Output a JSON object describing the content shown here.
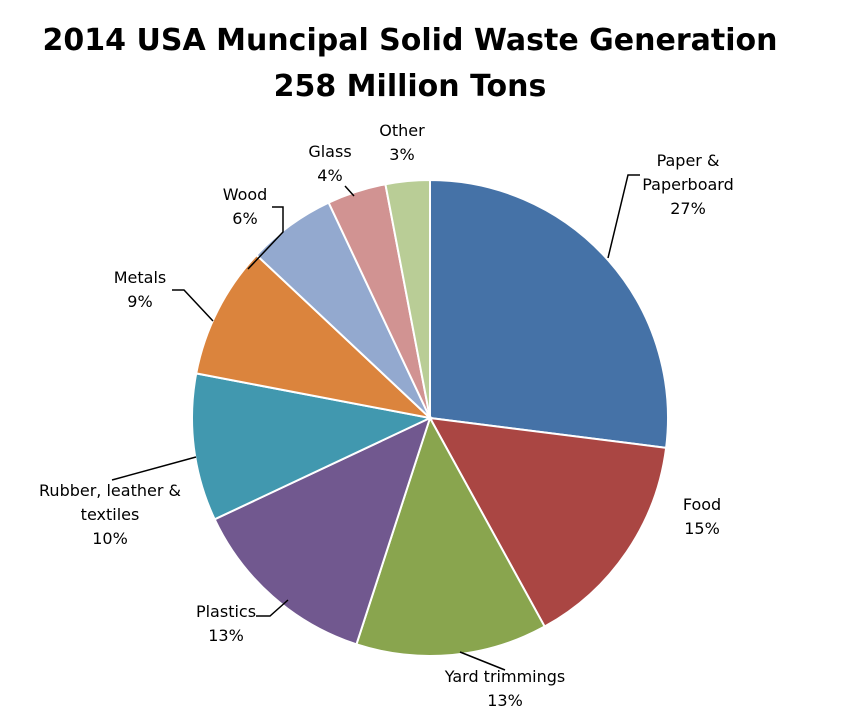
{
  "chart_data": {
    "type": "pie",
    "title": "2014 USA Muncipal Solid Waste Generation",
    "subtitle": "258 Million Tons",
    "legend": "none",
    "start_angle_deg": 0,
    "direction": "clockwise",
    "slices": [
      {
        "label_lines": [
          "Paper &",
          "Paperboard"
        ],
        "percent_label": "27%",
        "value": 27,
        "color": "#4572a7"
      },
      {
        "label_lines": [
          "Food"
        ],
        "percent_label": "15%",
        "value": 15,
        "color": "#aa4643"
      },
      {
        "label_lines": [
          "Yard trimmings"
        ],
        "percent_label": "13%",
        "value": 13,
        "color": "#89a54e"
      },
      {
        "label_lines": [
          "Plastics"
        ],
        "percent_label": "13%",
        "value": 13,
        "color": "#71588f"
      },
      {
        "label_lines": [
          "Rubber, leather &",
          "textiles"
        ],
        "percent_label": "10%",
        "value": 10,
        "color": "#4198af"
      },
      {
        "label_lines": [
          "Metals"
        ],
        "percent_label": "9%",
        "value": 9,
        "color": "#db843d"
      },
      {
        "label_lines": [
          "Wood"
        ],
        "percent_label": "6%",
        "value": 6,
        "color": "#93a9cf"
      },
      {
        "label_lines": [
          "Glass"
        ],
        "percent_label": "4%",
        "value": 4,
        "color": "#d19392"
      },
      {
        "label_lines": [
          "Other"
        ],
        "percent_label": "3%",
        "value": 3,
        "color": "#b9cd96"
      }
    ]
  }
}
